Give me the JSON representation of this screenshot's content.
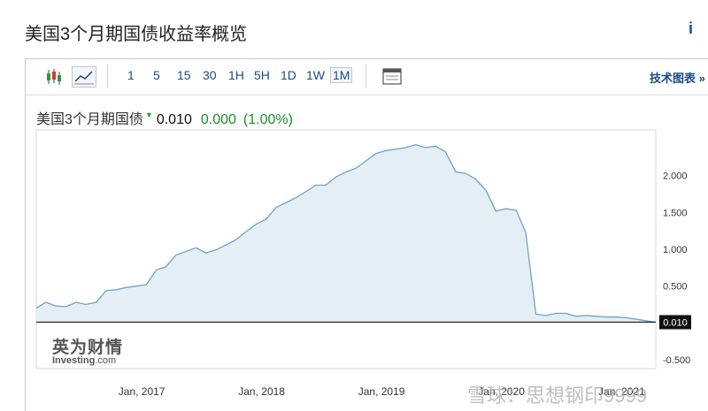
{
  "page": {
    "title": "美国3个月期国债收益率概览",
    "info_glyph": "i"
  },
  "toolbar": {
    "icons": [
      "candlestick-icon",
      "line-chart-icon",
      "panel-layout-icon"
    ],
    "timeframes": [
      "1",
      "5",
      "15",
      "30",
      "1H",
      "5H",
      "1D",
      "1W",
      "1M"
    ],
    "active_timeframe": "1M",
    "tech_chart_label": "技术图表 »"
  },
  "legend": {
    "name": "美国3个月期国债",
    "price": "0.010",
    "change": "0.000",
    "change_pct": "(1.00%)"
  },
  "watermark": {
    "cn": "英为财情",
    "en": "Investing",
    "en_suffix": ".com"
  },
  "overlay_text": "雪球：思想钢印9999",
  "colors": {
    "line": "#6fa3c4",
    "fill": "#e4eef5",
    "up": "#1e8c2a",
    "link": "#1b4a8a"
  },
  "chart_data": {
    "type": "area",
    "title": "",
    "xlabel": "",
    "ylabel": "",
    "y_ticks": [
      2.0,
      1.5,
      1.0,
      0.5,
      -0.5
    ],
    "y_tick_labels": [
      "2.000",
      "1.500",
      "1.000",
      "0.500",
      "-0.500"
    ],
    "ylim": [
      -0.62,
      2.62
    ],
    "xlim": [
      "2016-02-15",
      "2021-04-15"
    ],
    "x_ticks": [
      "2017-01-01",
      "2018-01-01",
      "2019-01-01",
      "2020-01-01",
      "2021-01-01"
    ],
    "x_tick_labels": [
      "Jan, 2017",
      "Jan, 2018",
      "Jan, 2019",
      "Jan, 2020",
      "Jan, 2021"
    ],
    "current_value": 0.01,
    "current_label": "0.010",
    "grid": false,
    "series": [
      {
        "dates": [
          "2016-02-15",
          "2016-03-15",
          "2016-04-15",
          "2016-05-15",
          "2016-06-15",
          "2016-07-15",
          "2016-08-15",
          "2016-09-15",
          "2016-10-15",
          "2016-11-15",
          "2016-12-15",
          "2017-01-15",
          "2017-02-15",
          "2017-03-15",
          "2017-04-15",
          "2017-05-15",
          "2017-06-15",
          "2017-07-15",
          "2017-08-15",
          "2017-09-15",
          "2017-10-15",
          "2017-11-15",
          "2017-12-15",
          "2018-01-15",
          "2018-02-15",
          "2018-03-15",
          "2018-04-15",
          "2018-05-15",
          "2018-06-15",
          "2018-07-15",
          "2018-08-15",
          "2018-09-15",
          "2018-10-15",
          "2018-11-15",
          "2018-12-15",
          "2019-01-15",
          "2019-02-15",
          "2019-03-15",
          "2019-04-15",
          "2019-05-15",
          "2019-06-15",
          "2019-07-15",
          "2019-08-15",
          "2019-09-15",
          "2019-10-15",
          "2019-11-15",
          "2019-12-15",
          "2020-01-15",
          "2020-02-15",
          "2020-03-15",
          "2020-04-15",
          "2020-05-15",
          "2020-06-15",
          "2020-07-15",
          "2020-08-15",
          "2020-09-15",
          "2020-10-15",
          "2020-11-15",
          "2020-12-15",
          "2021-01-15",
          "2021-02-15",
          "2021-03-15",
          "2021-04-15"
        ],
        "values": [
          0.2,
          0.28,
          0.23,
          0.22,
          0.28,
          0.25,
          0.28,
          0.44,
          0.45,
          0.48,
          0.5,
          0.52,
          0.72,
          0.76,
          0.92,
          0.97,
          1.02,
          0.95,
          0.99,
          1.06,
          1.13,
          1.24,
          1.34,
          1.41,
          1.57,
          1.63,
          1.7,
          1.78,
          1.87,
          1.87,
          1.98,
          2.05,
          2.1,
          2.2,
          2.3,
          2.34,
          2.36,
          2.38,
          2.42,
          2.38,
          2.4,
          2.32,
          2.05,
          2.03,
          1.95,
          1.8,
          1.52,
          1.55,
          1.53,
          1.23,
          0.12,
          0.1,
          0.13,
          0.13,
          0.09,
          0.1,
          0.09,
          0.08,
          0.08,
          0.07,
          0.05,
          0.03,
          0.01
        ]
      }
    ]
  }
}
